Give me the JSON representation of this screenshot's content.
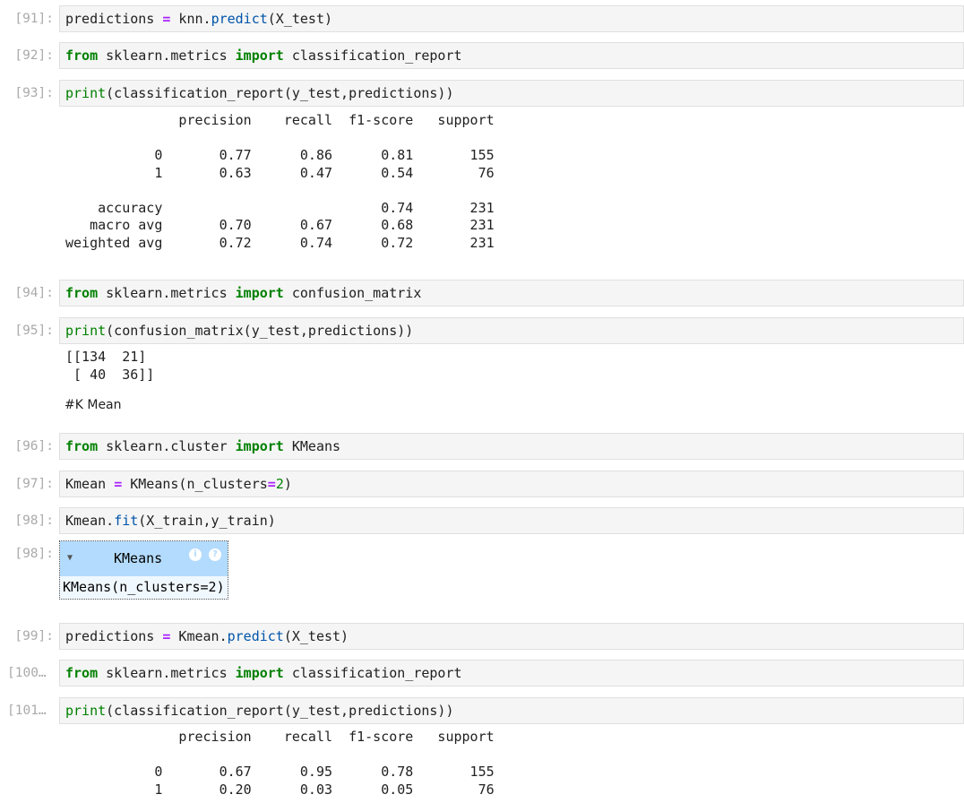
{
  "cells": [
    {
      "prompt": "[91]:",
      "tokens": [
        [
          "predictions ",
          ""
        ],
        [
          "=",
          "op"
        ],
        [
          " knn.",
          ""
        ],
        [
          "predict",
          "fn"
        ],
        [
          "(X_test)",
          ""
        ]
      ]
    },
    {
      "prompt": "[92]:",
      "tokens": [
        [
          "from",
          "kw"
        ],
        [
          " sklearn.metrics ",
          ""
        ],
        [
          "import",
          "kw"
        ],
        [
          " classification_report",
          ""
        ]
      ]
    },
    {
      "prompt": "[93]:",
      "tokens": [
        [
          "print",
          "bi"
        ],
        [
          "(classification_report(y_test,predictions))",
          ""
        ]
      ]
    },
    {
      "prompt": "[94]:",
      "tokens": [
        [
          "from",
          "kw"
        ],
        [
          " sklearn.metrics ",
          ""
        ],
        [
          "import",
          "kw"
        ],
        [
          " confusion_matrix",
          ""
        ]
      ]
    },
    {
      "prompt": "[95]:",
      "tokens": [
        [
          "print",
          "bi"
        ],
        [
          "(confusion_matrix(y_test,predictions))",
          ""
        ]
      ]
    },
    {
      "prompt": "[96]:",
      "tokens": [
        [
          "from",
          "kw"
        ],
        [
          " sklearn.cluster ",
          ""
        ],
        [
          "import",
          "kw"
        ],
        [
          " KMeans",
          ""
        ]
      ]
    },
    {
      "prompt": "[97]:",
      "tokens": [
        [
          "Kmean ",
          ""
        ],
        [
          "=",
          "op"
        ],
        [
          " KMeans(n_clusters",
          ""
        ],
        [
          "=",
          "op"
        ],
        [
          "2",
          "num"
        ],
        [
          ")",
          ""
        ]
      ]
    },
    {
      "prompt": "[98]:",
      "tokens": [
        [
          "Kmean.",
          ""
        ],
        [
          "fit",
          "fn"
        ],
        [
          "(X_train,y_train)",
          ""
        ]
      ]
    },
    {
      "prompt": "[99]:",
      "tokens": [
        [
          "predictions ",
          ""
        ],
        [
          "=",
          "op"
        ],
        [
          " Kmean.",
          ""
        ],
        [
          "predict",
          "fn"
        ],
        [
          "(X_test)",
          ""
        ]
      ]
    },
    {
      "prompt": "[100…",
      "tokens": [
        [
          "from",
          "kw"
        ],
        [
          " sklearn.metrics ",
          ""
        ],
        [
          "import",
          "kw"
        ],
        [
          " classification_report",
          ""
        ]
      ]
    },
    {
      "prompt": "[101…",
      "tokens": [
        [
          "print",
          "bi"
        ],
        [
          "(classification_report(y_test,predictions))",
          ""
        ]
      ]
    }
  ],
  "outputs": {
    "report_knn": "              precision    recall  f1-score   support\n\n           0       0.77      0.86      0.81       155\n           1       0.63      0.47      0.54        76\n\n    accuracy                           0.74       231\n   macro avg       0.70      0.67      0.68       231\nweighted avg       0.72      0.74      0.72       231",
    "confusion_matrix": "[[134  21]\n [ 40  36]]",
    "report_kmeans": "              precision    recall  f1-score   support\n\n           0       0.67      0.95      0.78       155\n           1       0.20      0.03      0.05        76"
  },
  "markdown": "#K Mean",
  "widget": {
    "prompt": "[98]:",
    "title": "KMeans",
    "repr": "KMeans(n_clusters=2)",
    "info_icon": "i",
    "help_icon": "?"
  }
}
